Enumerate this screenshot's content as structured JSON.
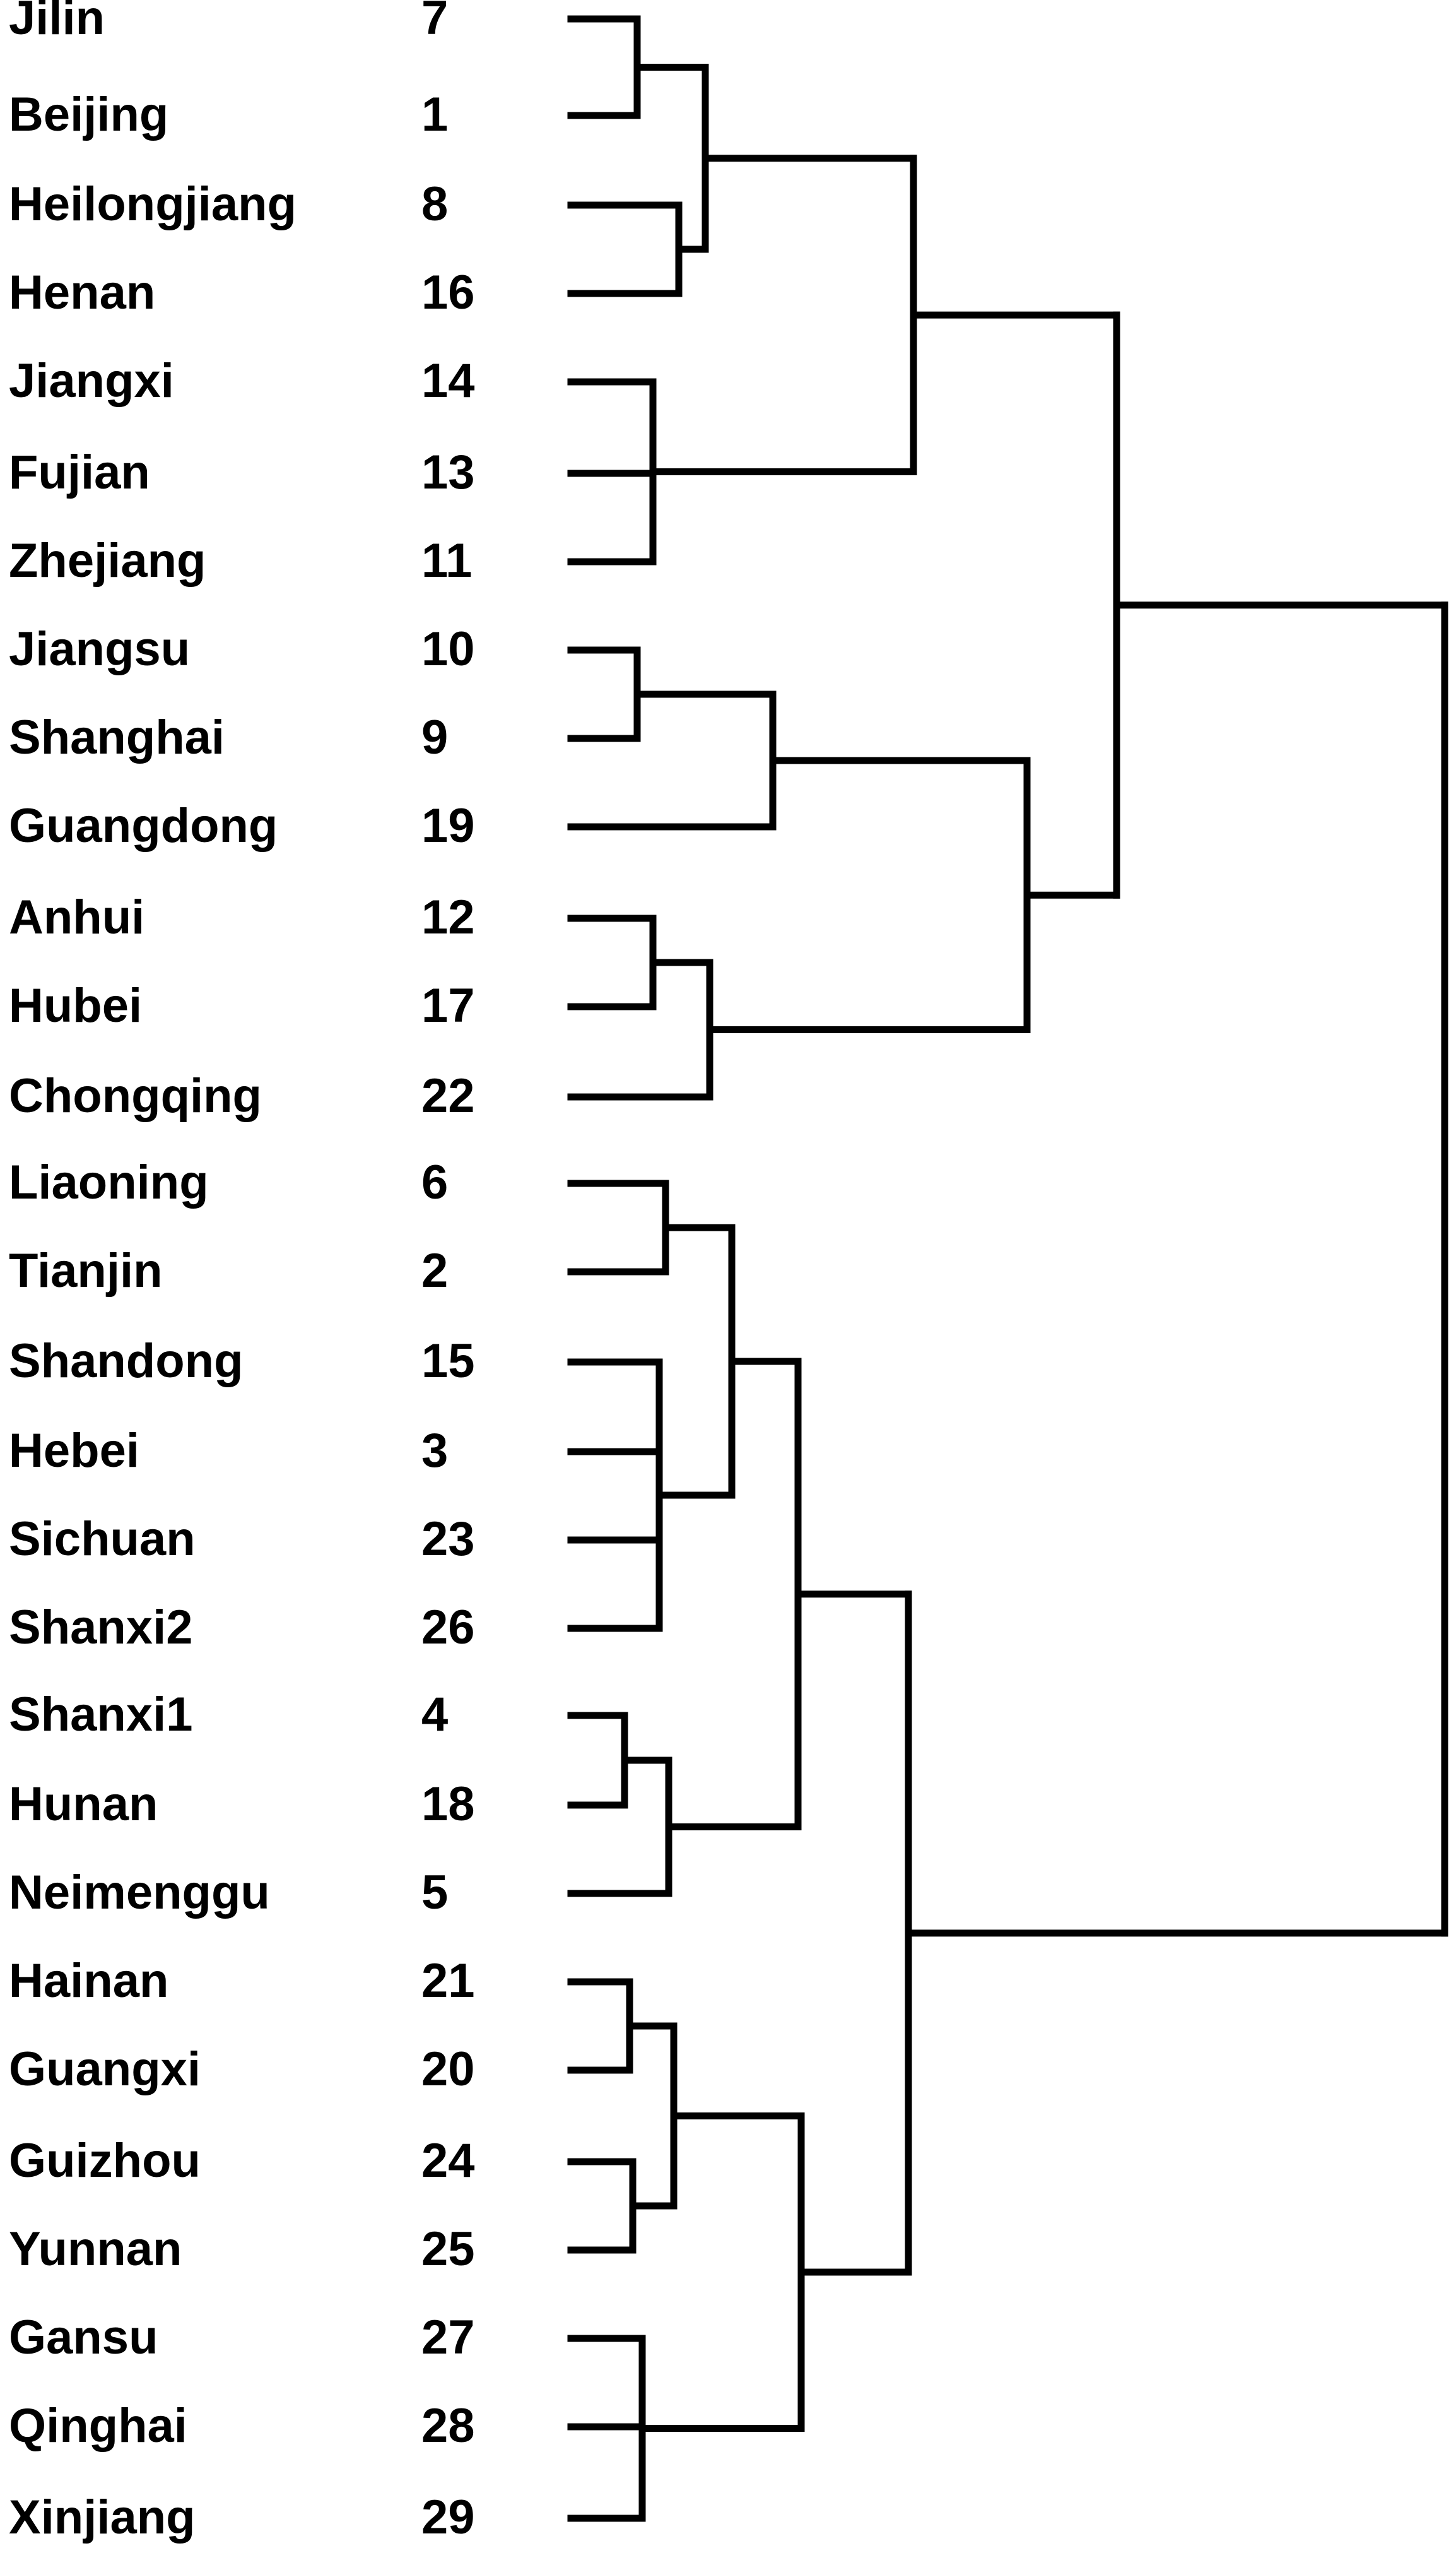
{
  "diagram_type": "dendrogram",
  "leaves": [
    {
      "name": "Jilin",
      "number": "7"
    },
    {
      "name": "Beijing",
      "number": "1"
    },
    {
      "name": "Heilongjiang",
      "number": "8"
    },
    {
      "name": "Henan",
      "number": "16"
    },
    {
      "name": "Jiangxi",
      "number": "14"
    },
    {
      "name": "Fujian",
      "number": "13"
    },
    {
      "name": "Zhejiang",
      "number": "11"
    },
    {
      "name": "Jiangsu",
      "number": "10"
    },
    {
      "name": "Shanghai",
      "number": "9"
    },
    {
      "name": "Guangdong",
      "number": "19"
    },
    {
      "name": "Anhui",
      "number": "12"
    },
    {
      "name": "Hubei",
      "number": "17"
    },
    {
      "name": "Chongqing",
      "number": "22"
    },
    {
      "name": "Liaoning",
      "number": "6"
    },
    {
      "name": "Tianjin",
      "number": "2"
    },
    {
      "name": "Shandong",
      "number": "15"
    },
    {
      "name": "Hebei",
      "number": "3"
    },
    {
      "name": "Sichuan",
      "number": "23"
    },
    {
      "name": "Shanxi2",
      "number": "26"
    },
    {
      "name": "Shanxi1",
      "number": "4"
    },
    {
      "name": "Hunan",
      "number": "18"
    },
    {
      "name": "Neimenggu",
      "number": "5"
    },
    {
      "name": "Hainan",
      "number": "21"
    },
    {
      "name": "Guangxi",
      "number": "20"
    },
    {
      "name": "Guizhou",
      "number": "24"
    },
    {
      "name": "Yunnan",
      "number": "25"
    },
    {
      "name": "Gansu",
      "number": "27"
    },
    {
      "name": "Qinghai",
      "number": "28"
    },
    {
      "name": "Xinjiang",
      "number": "29"
    }
  ],
  "tree": {
    "children": [
      {
        "children": [
          {
            "children": [
              {
                "children": [
                  {
                    "children": [
                      {
                        "leaf": 0
                      },
                      {
                        "leaf": 1
                      }
                    ]
                  },
                  {
                    "children": [
                      {
                        "leaf": 2
                      },
                      {
                        "leaf": 3
                      }
                    ]
                  }
                ]
              },
              {
                "children": [
                  {
                    "leaf": 4
                  },
                  {
                    "leaf": 5
                  },
                  {
                    "leaf": 6
                  }
                ]
              }
            ]
          },
          {
            "children": [
              {
                "children": [
                  {
                    "children": [
                      {
                        "leaf": 7
                      },
                      {
                        "leaf": 8
                      }
                    ]
                  },
                  {
                    "leaf": 9
                  }
                ]
              },
              {
                "children": [
                  {
                    "children": [
                      {
                        "leaf": 10
                      },
                      {
                        "leaf": 11
                      }
                    ]
                  },
                  {
                    "leaf": 12
                  }
                ]
              }
            ]
          }
        ]
      },
      {
        "children": [
          {
            "children": [
              {
                "children": [
                  {
                    "children": [
                      {
                        "leaf": 13
                      },
                      {
                        "leaf": 14
                      }
                    ]
                  },
                  {
                    "children": [
                      {
                        "leaf": 15
                      },
                      {
                        "leaf": 16
                      },
                      {
                        "leaf": 17
                      },
                      {
                        "leaf": 18
                      }
                    ]
                  }
                ]
              },
              {
                "children": [
                  {
                    "children": [
                      {
                        "leaf": 19
                      },
                      {
                        "leaf": 20
                      }
                    ]
                  },
                  {
                    "leaf": 21
                  }
                ]
              }
            ]
          },
          {
            "children": [
              {
                "children": [
                  {
                    "children": [
                      {
                        "leaf": 22
                      },
                      {
                        "leaf": 23
                      }
                    ]
                  },
                  {
                    "children": [
                      {
                        "leaf": 24
                      },
                      {
                        "leaf": 25
                      }
                    ]
                  }
                ]
              },
              {
                "children": [
                  {
                    "leaf": 26
                  },
                  {
                    "leaf": 27
                  },
                  {
                    "leaf": 28
                  }
                ]
              }
            ]
          }
        ]
      }
    ]
  },
  "colors": {
    "line": "#000000",
    "text": "#000000",
    "background": "#ffffff"
  }
}
